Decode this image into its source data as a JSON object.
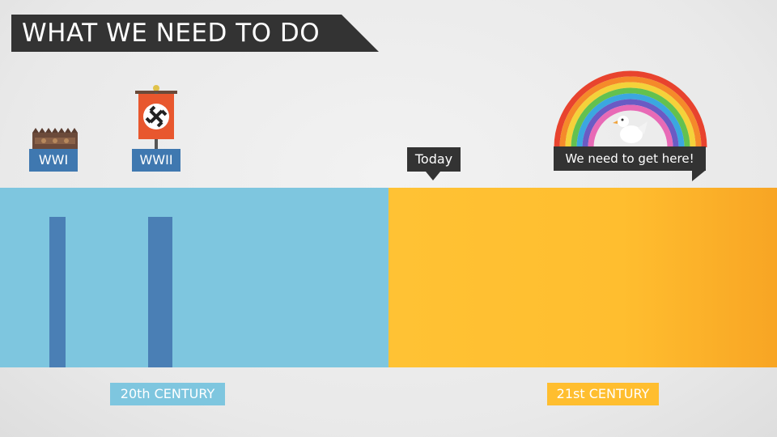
{
  "title": "WHAT WE NEED TO DO",
  "events": [
    {
      "label": "WWI",
      "icon": "trench-icon"
    },
    {
      "label": "WWII",
      "icon": "nazi-flag-icon"
    }
  ],
  "today_label": "Today",
  "goal_label": "We need to get here!",
  "goal_icon": "rainbow-dove-icon",
  "centuries": [
    "20th CENTURY",
    "21st CENTURY"
  ],
  "colors": {
    "past_band": "#7ec6df",
    "future_band": "#ffbe2f",
    "pillar": "#4a7fb5",
    "label_dark": "#333333"
  }
}
